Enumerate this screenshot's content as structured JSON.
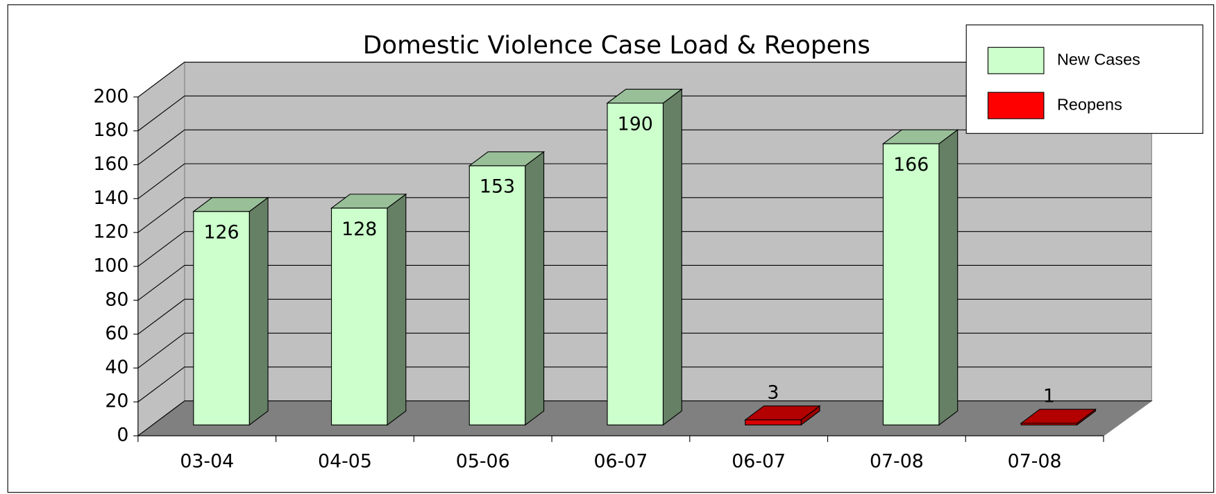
{
  "chart_data": {
    "type": "bar3d",
    "title": "Domestic Violence Case Load & Reopens",
    "categories": [
      "03-04",
      "04-05",
      "05-06",
      "06-07",
      "06-07",
      "07-08",
      "07-08"
    ],
    "series": [
      {
        "name": "New Cases",
        "color": "#ccffcc",
        "values": [
          126,
          128,
          153,
          190,
          null,
          166,
          null
        ]
      },
      {
        "name": "Reopens",
        "color": "#ff0000",
        "values": [
          null,
          null,
          null,
          null,
          3,
          null,
          1
        ]
      }
    ],
    "ylim": [
      0,
      200
    ],
    "yticks": [
      0,
      20,
      40,
      60,
      80,
      100,
      120,
      140,
      160,
      180,
      200
    ],
    "grid": true,
    "legend": "upper right"
  }
}
